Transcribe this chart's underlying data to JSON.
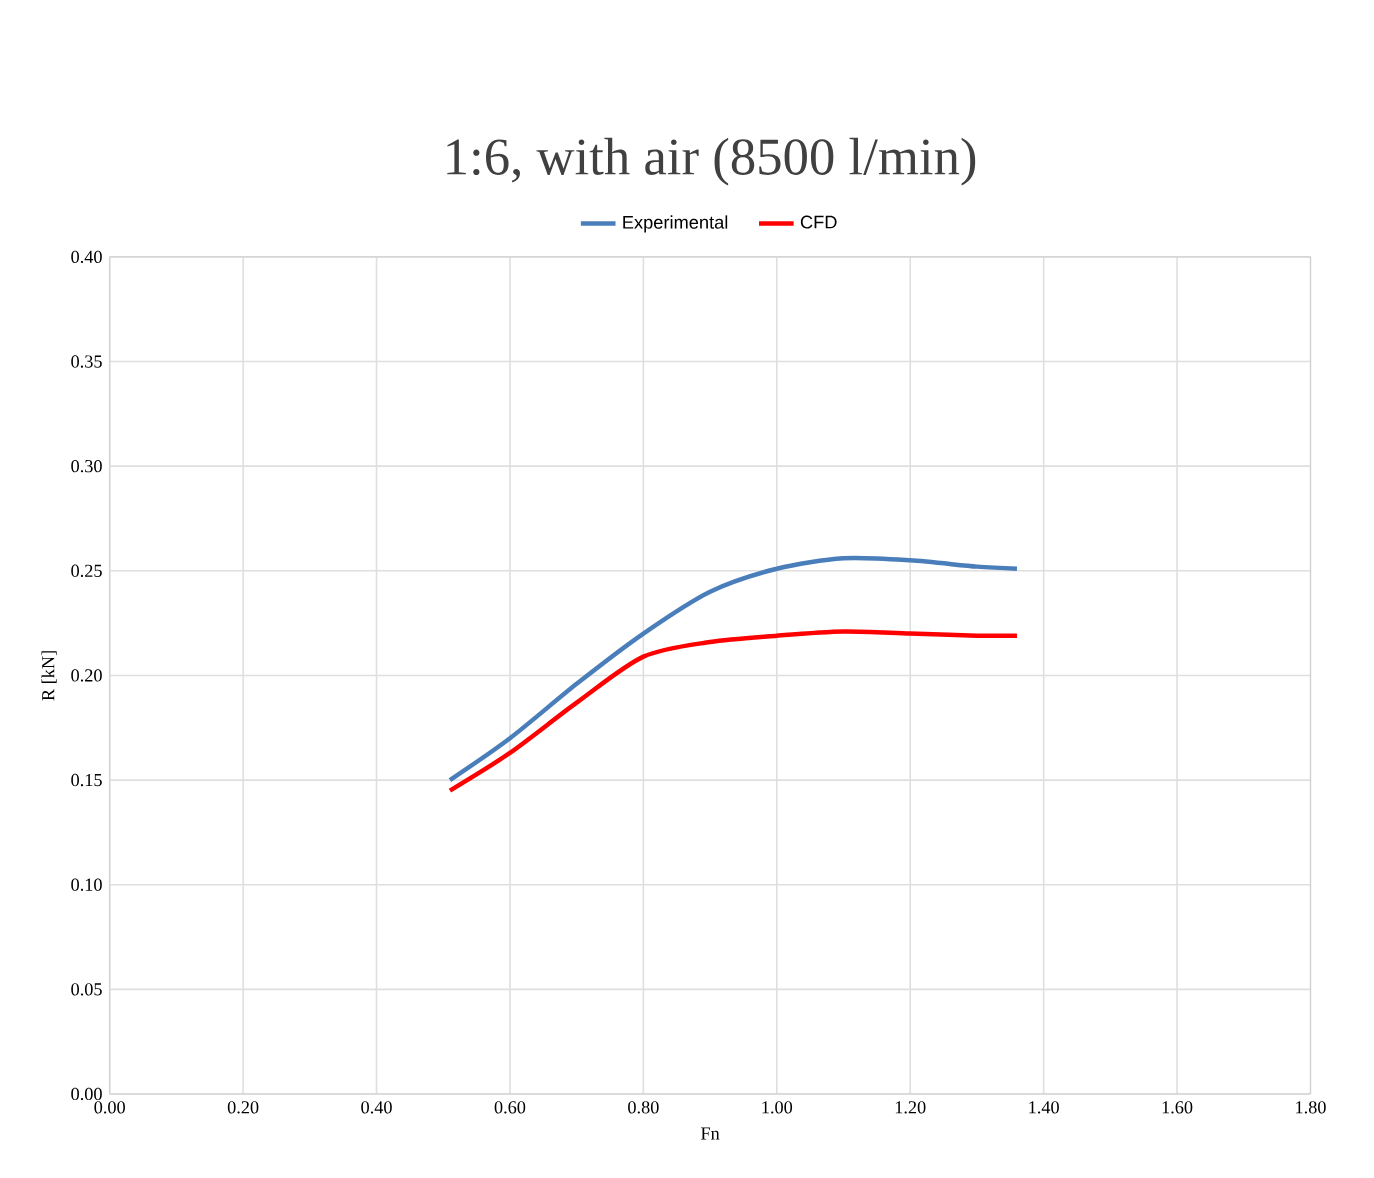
{
  "chart_data": {
    "type": "line",
    "title": "1:6, with air (8500 l/min)",
    "xlabel": "Fn",
    "ylabel": "R [kN]",
    "xlim": [
      0,
      1.8
    ],
    "xticks": [
      {
        "value": 0,
        "label": "0.00"
      },
      {
        "value": 0.2,
        "label": "0.20"
      },
      {
        "value": 0.4,
        "label": "0.40"
      },
      {
        "value": 0.6,
        "label": "0.60"
      },
      {
        "value": 0.8,
        "label": "0.80"
      },
      {
        "value": 1.0,
        "label": "1.00"
      },
      {
        "value": 1.2,
        "label": "1.20"
      },
      {
        "value": 1.4,
        "label": "1.40"
      },
      {
        "value": 1.6,
        "label": "1.60"
      },
      {
        "value": 1.8,
        "label": "1.80"
      }
    ],
    "ylim": [
      0,
      0.4
    ],
    "yticks": [
      {
        "value": 0,
        "label": "0.00"
      },
      {
        "value": 0.05,
        "label": "0.05"
      },
      {
        "value": 0.1,
        "label": "0.10"
      },
      {
        "value": 0.15,
        "label": "0.15"
      },
      {
        "value": 0.2,
        "label": "0.20"
      },
      {
        "value": 0.25,
        "label": "0.25"
      },
      {
        "value": 0.3,
        "label": "0.30"
      },
      {
        "value": 0.35,
        "label": "0.35"
      },
      {
        "value": 0.4,
        "label": "0.40"
      }
    ],
    "grid": true,
    "legend": "top",
    "marker": "none",
    "line_style": "solid",
    "series": [
      {
        "name": "Experimental",
        "color": "#4a7ebb",
        "x": [
          0.51,
          0.6,
          0.7,
          0.8,
          0.9,
          1.0,
          1.1,
          1.2,
          1.3,
          1.36
        ],
        "values": [
          0.15,
          0.17,
          0.196,
          0.22,
          0.24,
          0.251,
          0.256,
          0.255,
          0.252,
          0.251
        ]
      },
      {
        "name": "CFD",
        "color": "#ff0000",
        "x": [
          0.51,
          0.6,
          0.7,
          0.8,
          0.9,
          1.0,
          1.1,
          1.2,
          1.3,
          1.36
        ],
        "values": [
          0.145,
          0.163,
          0.187,
          0.209,
          0.216,
          0.219,
          0.221,
          0.22,
          0.219,
          0.219
        ]
      }
    ]
  }
}
